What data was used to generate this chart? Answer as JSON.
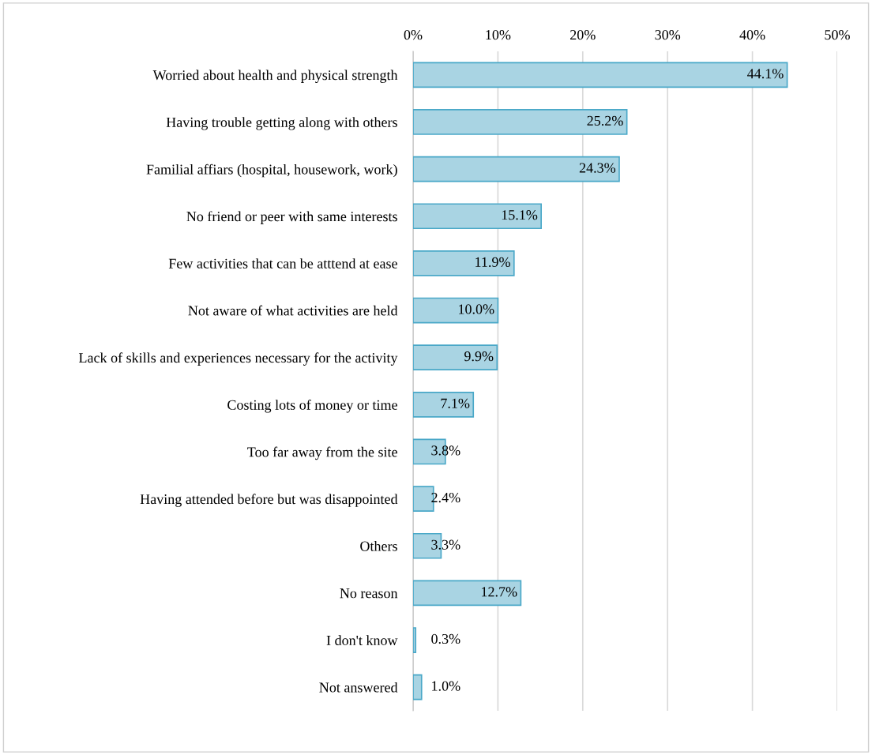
{
  "chart_data": {
    "type": "bar",
    "orientation": "horizontal",
    "categories": [
      "Worried about health and physical strength",
      "Having trouble getting along with others",
      "Familial affiars (hospital, housework, work)",
      "No friend or peer with same interests",
      "Few activities that can be atttend at ease",
      "Not aware of what activities are held",
      "Lack of skills and experiences necessary for the activity",
      "Costing lots of money or time",
      "Too far away from the site",
      "Having attended before but was disappointed",
      "Others",
      "No reason",
      "I don't know",
      "Not answered"
    ],
    "values": [
      44.1,
      25.2,
      24.3,
      15.1,
      11.9,
      10.0,
      9.9,
      7.1,
      3.8,
      2.4,
      3.3,
      12.7,
      0.3,
      1.0
    ],
    "value_labels": [
      "44.1%",
      "25.2%",
      "24.3%",
      "15.1%",
      "11.9%",
      "10.0%",
      "9.9%",
      "7.1%",
      "3.8%",
      "2.4%",
      "3.3%",
      "12.7%",
      "0.3%",
      "1.0%"
    ],
    "color": "#a9d4e3",
    "xlim": [
      0,
      50
    ],
    "xticks": [
      {
        "value": 0,
        "label": "0%"
      },
      {
        "value": 10,
        "label": "10%"
      },
      {
        "value": 20,
        "label": "20%"
      },
      {
        "value": 30,
        "label": "30%"
      },
      {
        "value": 40,
        "label": "40%"
      },
      {
        "value": 50,
        "label": "50%"
      }
    ],
    "grid": "x",
    "legend": false
  }
}
